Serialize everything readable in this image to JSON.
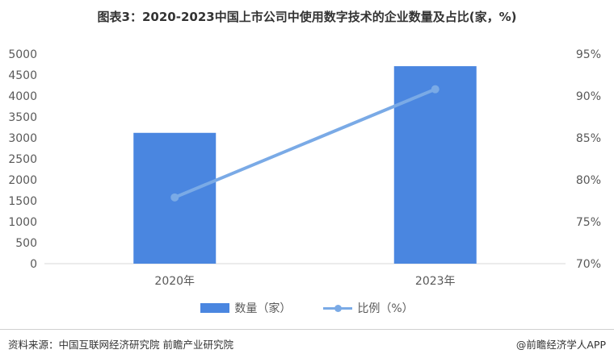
{
  "title": "图表3：2020-2023中国上市公司中使用数字技术的企业数量及占比(家，%)",
  "chart_data": {
    "type": "bar+line",
    "categories": [
      "2020年",
      "2023年"
    ],
    "series": [
      {
        "name": "数量（家）",
        "type": "bar",
        "axis": "left",
        "values": [
          3120,
          4710
        ]
      },
      {
        "name": "比例（%）",
        "type": "line",
        "axis": "right",
        "values": [
          77.9,
          90.8
        ]
      }
    ],
    "left_axis": {
      "min": 0,
      "max": 5000,
      "step": 500,
      "tick_labels": [
        "0",
        "500",
        "1000",
        "1500",
        "2000",
        "2500",
        "3000",
        "3500",
        "4000",
        "4500",
        "5000"
      ]
    },
    "right_axis": {
      "min": 70,
      "max": 95,
      "step": 5,
      "tick_labels": [
        "70%",
        "75%",
        "80%",
        "85%",
        "90%",
        "95%"
      ]
    },
    "grid": false,
    "legend_position": "bottom",
    "colors": {
      "bar": "#4a86e0",
      "line": "#7aaae6"
    }
  },
  "legend": {
    "bar_label": "数量（家）",
    "line_label": "比例（%）"
  },
  "footer": {
    "source": "资料来源：中国互联网经济研究院 前瞻产业研究院",
    "brand": "@前瞻经济学人APP"
  }
}
